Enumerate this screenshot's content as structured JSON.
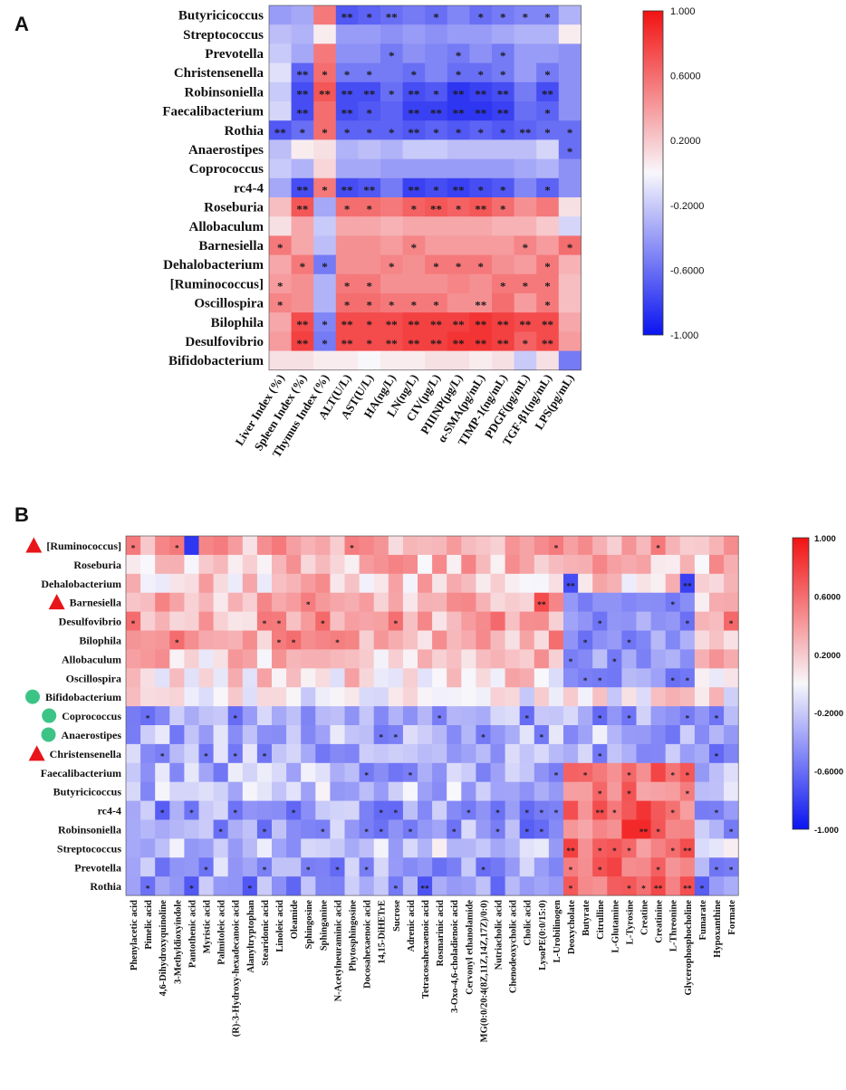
{
  "chart_data": [
    {
      "panel": "A",
      "type": "heatmap",
      "title": "",
      "colorbar": {
        "min": -1.0,
        "max": 1.0,
        "ticks": [
          "1.000",
          "0.6000",
          "0.2000",
          "-0.2000",
          "-0.6000",
          "-1.000"
        ],
        "colors": {
          "negative": "#0a14f0",
          "zero": "#f8f7fb",
          "positive": "#f21212"
        }
      },
      "rows": [
        "Butyricicoccus",
        "Streptococcus",
        "Prevotella",
        "Christensenella",
        "Robinsoniella",
        "Faecalibacterium",
        "Rothia",
        "Anaerostipes",
        "Coprococcus",
        "rc4-4",
        "Roseburia",
        "Allobaculum",
        "Barnesiella",
        "Dehalobacterium",
        "[Ruminococcus]",
        "Oscillospira",
        "Bilophila",
        "Desulfovibrio",
        "Bifidobacterium"
      ],
      "columns": [
        "Liver Index (%)",
        "Spleen Index (%)",
        "Thymus Index (%)",
        "ALT(U/L)",
        "AST(U/L)",
        "HA(ng/L)",
        "LN(ng/L)",
        "CIV(μg/L)",
        "PIIINP(μg/L)",
        "α-SMA(pg/mL)",
        "TIMP-1(ng/mL)",
        "PDGF(pg/mL)",
        "TGF-β1(ng/mL)",
        "LPS(pg/mL)"
      ],
      "values": [
        [
          -0.4,
          -0.35,
          0.55,
          -0.7,
          -0.65,
          -0.6,
          -0.55,
          -0.6,
          -0.5,
          -0.6,
          -0.55,
          -0.5,
          -0.5,
          -0.3
        ],
        [
          -0.25,
          -0.3,
          0.05,
          -0.4,
          -0.4,
          -0.45,
          -0.4,
          -0.45,
          -0.4,
          -0.4,
          -0.35,
          -0.3,
          -0.3,
          0.05
        ],
        [
          -0.2,
          -0.35,
          0.55,
          -0.45,
          -0.45,
          -0.55,
          -0.45,
          -0.5,
          -0.55,
          -0.45,
          -0.55,
          -0.4,
          -0.4,
          -0.45
        ],
        [
          -0.1,
          -0.65,
          0.6,
          -0.55,
          -0.55,
          -0.55,
          -0.6,
          -0.5,
          -0.6,
          -0.6,
          -0.55,
          -0.4,
          -0.55,
          -0.45
        ],
        [
          -0.2,
          -0.75,
          0.7,
          -0.75,
          -0.75,
          -0.6,
          -0.75,
          -0.7,
          -0.85,
          -0.8,
          -0.75,
          -0.55,
          -0.75,
          -0.45
        ],
        [
          -0.15,
          -0.75,
          0.6,
          -0.75,
          -0.7,
          -0.65,
          -0.8,
          -0.8,
          -0.85,
          -0.85,
          -0.8,
          -0.6,
          -0.65,
          -0.45
        ],
        [
          -0.7,
          -0.6,
          0.6,
          -0.65,
          -0.65,
          -0.65,
          -0.7,
          -0.65,
          -0.7,
          -0.65,
          -0.7,
          -0.65,
          -0.6,
          -0.6
        ],
        [
          -0.25,
          0.05,
          0.1,
          -0.3,
          -0.25,
          -0.3,
          -0.2,
          -0.2,
          -0.25,
          -0.25,
          -0.25,
          -0.25,
          -0.15,
          -0.6
        ],
        [
          -0.2,
          -0.3,
          0.15,
          -0.35,
          -0.35,
          -0.4,
          -0.4,
          -0.4,
          -0.4,
          -0.4,
          -0.4,
          -0.35,
          -0.3,
          -0.45
        ],
        [
          -0.35,
          -0.75,
          0.55,
          -0.75,
          -0.7,
          -0.55,
          -0.8,
          -0.75,
          -0.8,
          -0.75,
          -0.7,
          -0.5,
          -0.65,
          -0.45
        ],
        [
          0.25,
          0.7,
          -0.35,
          0.6,
          0.6,
          0.55,
          0.65,
          0.7,
          0.65,
          0.7,
          0.6,
          0.45,
          0.55,
          0.1
        ],
        [
          0.1,
          0.35,
          -0.2,
          0.35,
          0.35,
          0.3,
          0.35,
          0.35,
          0.35,
          0.35,
          0.3,
          0.3,
          0.2,
          -0.15
        ],
        [
          0.55,
          0.35,
          -0.25,
          0.45,
          0.45,
          0.4,
          0.5,
          0.4,
          0.4,
          0.4,
          0.4,
          0.5,
          0.4,
          0.6
        ],
        [
          0.35,
          0.55,
          -0.55,
          0.45,
          0.45,
          0.5,
          0.45,
          0.55,
          0.55,
          0.55,
          0.45,
          0.4,
          0.55,
          0.3
        ],
        [
          0.4,
          0.45,
          -0.3,
          0.55,
          0.55,
          0.45,
          0.45,
          0.45,
          0.5,
          0.45,
          0.55,
          0.55,
          0.55,
          0.25
        ],
        [
          0.5,
          0.45,
          -0.3,
          0.6,
          0.6,
          0.55,
          0.55,
          0.55,
          0.45,
          0.45,
          0.6,
          0.4,
          0.55,
          0.25
        ],
        [
          0.35,
          0.75,
          -0.5,
          0.75,
          0.75,
          0.75,
          0.8,
          0.8,
          0.8,
          0.85,
          0.8,
          0.75,
          0.75,
          0.35
        ],
        [
          0.4,
          0.8,
          -0.55,
          0.75,
          0.75,
          0.75,
          0.8,
          0.8,
          0.85,
          0.85,
          0.8,
          0.65,
          0.75,
          0.4
        ],
        [
          0.1,
          0.1,
          0.05,
          0.05,
          0.0,
          0.05,
          0.05,
          0.1,
          0.1,
          0.05,
          0.1,
          -0.2,
          0.1,
          -0.55
        ]
      ],
      "stars": [
        [
          "",
          "",
          "",
          "**",
          "*",
          "**",
          "",
          "*",
          "",
          "*",
          "*",
          "*",
          "*",
          ""
        ],
        [
          "",
          "",
          "",
          "",
          "",
          "",
          "",
          "",
          "",
          "",
          "",
          "",
          "",
          ""
        ],
        [
          "",
          "",
          "",
          "",
          "",
          "*",
          "",
          "",
          "*",
          "",
          "*",
          "",
          "",
          ""
        ],
        [
          "",
          "**",
          "*",
          "*",
          "*",
          "",
          "*",
          "",
          "*",
          "*",
          "*",
          "",
          "*",
          ""
        ],
        [
          "",
          "**",
          "**",
          "**",
          "**",
          "*",
          "**",
          "*",
          "**",
          "**",
          "**",
          "",
          "**",
          ""
        ],
        [
          "",
          "**",
          "",
          "**",
          "*",
          "",
          "**",
          "**",
          "**",
          "**",
          "**",
          "",
          "*",
          ""
        ],
        [
          "**",
          "*",
          "*",
          "*",
          "*",
          "*",
          "**",
          "*",
          "*",
          "*",
          "*",
          "**",
          "*",
          "*"
        ],
        [
          "",
          "",
          "",
          "",
          "",
          "",
          "",
          "",
          "",
          "",
          "",
          "",
          "",
          "*"
        ],
        [
          "",
          "",
          "",
          "",
          "",
          "",
          "",
          "",
          "",
          "",
          "",
          "",
          "",
          ""
        ],
        [
          "",
          "**",
          "*",
          "**",
          "**",
          "",
          "**",
          "*",
          "**",
          "*",
          "*",
          "",
          "*",
          ""
        ],
        [
          "",
          "**",
          "",
          "*",
          "*",
          "",
          "*",
          "**",
          "*",
          "**",
          "*",
          "",
          "",
          ""
        ],
        [
          "",
          "",
          "",
          "",
          "",
          "",
          "",
          "",
          "",
          "",
          "",
          "",
          "",
          ""
        ],
        [
          "*",
          "",
          "",
          "",
          "",
          "",
          "*",
          "",
          "",
          "",
          "",
          "*",
          "",
          "*"
        ],
        [
          "",
          "*",
          "*",
          "",
          "",
          "*",
          "",
          "*",
          "*",
          "*",
          "",
          "",
          "*",
          ""
        ],
        [
          "*",
          "",
          "",
          "*",
          "*",
          "",
          "",
          "",
          "",
          "",
          "*",
          "*",
          "*",
          ""
        ],
        [
          "*",
          "",
          "",
          "*",
          "*",
          "*",
          "*",
          "*",
          "",
          "**",
          "",
          "",
          "*",
          ""
        ],
        [
          "",
          "**",
          "*",
          "**",
          "*",
          "**",
          "**",
          "**",
          "**",
          "**",
          "**",
          "**",
          "**",
          ""
        ],
        [
          "",
          "**",
          "*",
          "**",
          "*",
          "**",
          "**",
          "**",
          "**",
          "**",
          "**",
          "*",
          "**",
          ""
        ],
        [
          "",
          "",
          "",
          "",
          "",
          "",
          "",
          "",
          "",
          "",
          "",
          "",
          "",
          ""
        ]
      ]
    },
    {
      "panel": "B",
      "type": "heatmap",
      "title": "",
      "colorbar": {
        "min": -1.0,
        "max": 1.0,
        "ticks": [
          "1.000",
          "0.6000",
          "0.2000",
          "-0.2000",
          "-0.6000",
          "-1.000"
        ],
        "colors": {
          "negative": "#0a14f0",
          "zero": "#f8f7fb",
          "positive": "#f21212"
        }
      },
      "rows": [
        "[Ruminococcus]",
        "Roseburia",
        "Dehalobacterium",
        "Barnesiella",
        "Desulfovibrio",
        "Bilophila",
        "Allobaculum",
        "Oscillospira",
        "Bifidobacterium",
        "Coprococcus",
        "Anaerostipes",
        "Christensenella",
        "Faecalibacterium",
        "Butyricicoccus",
        "rc4-4",
        "Robinsoniella",
        "Streptococcus",
        "Prevotella",
        "Rothia"
      ],
      "row_markers": [
        "triangle",
        "",
        "",
        "triangle",
        "",
        "",
        "",
        "",
        "circle",
        "circle",
        "circle",
        "triangle",
        "",
        "",
        "",
        "",
        "",
        "",
        ""
      ],
      "row_marker_colors": {
        "triangle": "#e8141a",
        "circle": "#3cc486"
      },
      "columns": [
        "Phenylacetic acid",
        "Pimelic acid",
        "4,6-Dihydroxyquinoline",
        "3-Methyldioxyindole",
        "Pantothenic acid",
        "Myristic acid",
        "Palmitoleic acid",
        "(R)-3-Hydroxy-hexadecanoic acid",
        "Alanyltryptophan",
        "Stearidonic acid",
        "Linoleic acid",
        "Oleamide",
        "Sphingosine",
        "Sphinganine",
        "N-Acetylneuraminic acid",
        "Phytosphingosine",
        "Docosahexaenoic acid",
        "14,15-DiHETrE",
        "Sucrose",
        "Adrenic acid",
        "Tetracosahexaenoic acid",
        "Rosmarinic acid",
        "3-Oxo-4,6-choladienoic acid",
        "Cervonyl ethanolamide",
        "MG(0:0/20:4(8Z,11Z,14Z,17Z)/0:0)",
        "Nutriacholic acid",
        "Chenodeoxycholic acid",
        "Cholic acid",
        "LysoPE(0:0/15:0)",
        "L-Urobilinogen",
        "Deoxycholate",
        "Butyrate",
        "Citrulline",
        "L-Glutamine",
        "L-Tyrosine",
        "Creatine",
        "Creatinine",
        "L-Threonine",
        "Glycerophosphocholine",
        "Fumarate",
        "Hypoxanthine",
        "Formate"
      ],
      "row_means": [
        0.35,
        0.25,
        0.2,
        0.3,
        0.35,
        0.35,
        0.2,
        0.15,
        0.05,
        -0.35,
        -0.3,
        -0.35,
        -0.3,
        -0.25,
        -0.4,
        -0.4,
        -0.2,
        -0.35,
        -0.45
      ],
      "signature_cells": [
        {
          "row": "[Ruminococcus]",
          "col": "Pantothenic acid",
          "value": -0.85
        },
        {
          "row": "Barnesiella",
          "col": "LysoPE(0:0/15:0)",
          "value": 0.75
        },
        {
          "row": "Dehalobacterium",
          "col": "Glycerophosphocholine",
          "value": -0.8
        },
        {
          "row": "Dehalobacterium",
          "col": "Deoxycholate",
          "value": -0.75
        },
        {
          "row": "Robinsoniella",
          "col": "L-Tyrosine",
          "value": 0.9
        },
        {
          "row": "Robinsoniella",
          "col": "Creatine",
          "value": 0.9
        },
        {
          "row": "rc4-4",
          "col": "Creatine",
          "value": 0.85
        },
        {
          "row": "Faecalibacterium",
          "col": "Deoxycholate",
          "value": 0.65
        }
      ]
    }
  ]
}
